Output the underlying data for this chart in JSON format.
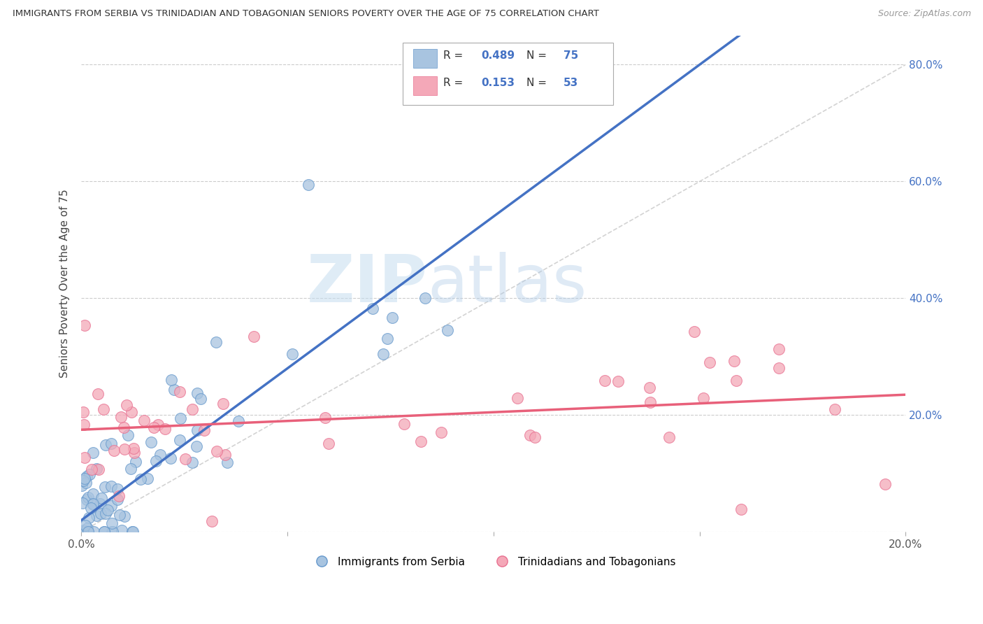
{
  "title": "IMMIGRANTS FROM SERBIA VS TRINIDADIAN AND TOBAGONIAN SENIORS POVERTY OVER THE AGE OF 75 CORRELATION CHART",
  "source": "Source: ZipAtlas.com",
  "ylabel": "Seniors Poverty Over the Age of 75",
  "xlim": [
    0.0,
    0.2
  ],
  "ylim": [
    0.0,
    0.85
  ],
  "blue_R": 0.489,
  "blue_N": 75,
  "pink_R": 0.153,
  "pink_N": 53,
  "blue_color": "#a8c4e0",
  "pink_color": "#f4a8b8",
  "blue_edge_color": "#6699cc",
  "pink_edge_color": "#e87090",
  "blue_line_color": "#4472c4",
  "pink_line_color": "#e8607a",
  "diag_line_color": "#c8c8c8",
  "watermark_zip": "ZIP",
  "watermark_atlas": "atlas",
  "tick_color": "#4472c4",
  "grid_color": "#cccccc"
}
